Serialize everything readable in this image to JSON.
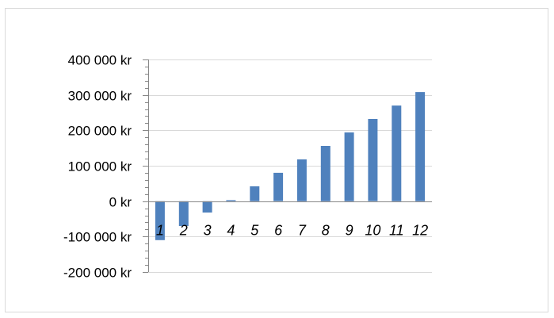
{
  "chart_data": {
    "type": "bar",
    "categories": [
      "1",
      "2",
      "3",
      "4",
      "5",
      "6",
      "7",
      "8",
      "9",
      "10",
      "11",
      "12"
    ],
    "values": [
      -110000,
      -70000,
      -32000,
      3000,
      42000,
      80000,
      118000,
      156000,
      194000,
      232000,
      270000,
      308000
    ],
    "ylim": [
      -200000,
      400000
    ],
    "yticks": [
      400000,
      300000,
      200000,
      100000,
      0,
      -100000,
      -200000
    ],
    "ytick_labels": [
      "400 000 kr",
      "300 000 kr",
      "200 000 kr",
      "100 000 kr",
      "0 kr",
      "-100 000 kr",
      "-200 000 kr"
    ],
    "title": "",
    "xlabel": "",
    "ylabel": "",
    "grid": true,
    "legend": false,
    "bar_color": "#4f81bd",
    "gridline_color": "#d9d9d9",
    "axis_color": "#868686"
  }
}
